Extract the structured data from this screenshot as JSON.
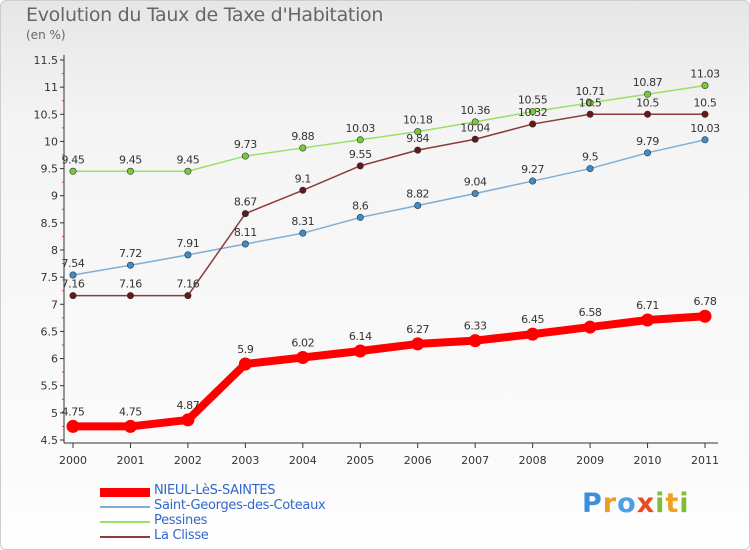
{
  "chart_data": {
    "type": "line",
    "title": "Evolution du Taux de Taxe d'Habitation",
    "subtitle": "(en %)",
    "xlabel": "",
    "ylabel": "",
    "categories": [
      "2000",
      "2001",
      "2002",
      "2003",
      "2004",
      "2005",
      "2006",
      "2007",
      "2008",
      "2009",
      "2010",
      "2011"
    ],
    "ylim": [
      4.5,
      11.5
    ],
    "yticks": [
      "4.5",
      "5",
      "5.5",
      "6",
      "6.5",
      "7",
      "7.5",
      "8",
      "8.5",
      "9",
      "9.5",
      "10",
      "10.5",
      "11",
      "11.5"
    ],
    "grid": false,
    "legend_position": "bottom-left",
    "series": [
      {
        "name": "NIEUL-LèS-SAINTES",
        "color": "#ff0000",
        "marker_color": "#ff0000",
        "emphasis": true,
        "values": [
          4.75,
          4.75,
          4.87,
          5.9,
          6.02,
          6.14,
          6.27,
          6.33,
          6.45,
          6.58,
          6.71,
          6.78
        ],
        "labels": [
          "4.75",
          "4.75",
          "4.87",
          "5.9",
          "6.02",
          "6.14",
          "6.27",
          "6.33",
          "6.45",
          "6.58",
          "6.71",
          "6.78"
        ]
      },
      {
        "name": "Saint-Georges-des-Coteaux",
        "color": "#7eaed6",
        "marker_color": "#3b8ec9",
        "emphasis": false,
        "values": [
          7.54,
          7.72,
          7.91,
          8.11,
          8.31,
          8.6,
          8.82,
          9.04,
          9.27,
          9.5,
          9.79,
          10.03
        ],
        "labels": [
          "7.54",
          "7.72",
          "7.91",
          "8.11",
          "8.31",
          "8.6",
          "8.82",
          "9.04",
          "9.27",
          "9.5",
          "9.79",
          "10.03"
        ]
      },
      {
        "name": "Pessines",
        "color": "#99e066",
        "marker_color": "#77cc33",
        "emphasis": false,
        "values": [
          9.45,
          9.45,
          9.45,
          9.73,
          9.88,
          10.03,
          10.18,
          10.36,
          10.55,
          10.71,
          10.87,
          11.03
        ],
        "labels": [
          "9.45",
          "9.45",
          "9.45",
          "9.73",
          "9.88",
          "10.03",
          "10.18",
          "10.36",
          "10.55",
          "10.71",
          "10.87",
          "11.03"
        ]
      },
      {
        "name": "La Clisse",
        "color": "#8c3a3a",
        "marker_color": "#661818",
        "emphasis": false,
        "values": [
          7.16,
          7.16,
          7.16,
          8.67,
          9.1,
          9.55,
          9.84,
          10.04,
          10.32,
          10.5,
          10.5,
          10.5
        ],
        "labels": [
          "7.16",
          "7.16",
          "7.16",
          "8.67",
          "9.1",
          "9.55",
          "9.84",
          "10.04",
          "10.32",
          "10.5",
          "10.5",
          "10.5"
        ]
      }
    ]
  },
  "legend": {
    "items": [
      {
        "label": "NIEUL-LèS-SAINTES",
        "color": "#ff0000",
        "text_color": "#3366cc"
      },
      {
        "label": "Saint-Georges-des-Coteaux",
        "color": "#7eaed6",
        "text_color": "#3366cc"
      },
      {
        "label": "Pessines",
        "color": "#99e066",
        "text_color": "#3366cc"
      },
      {
        "label": "La Clisse",
        "color": "#8c3a3a",
        "text_color": "#3366cc"
      }
    ]
  },
  "logo": {
    "letters": [
      {
        "ch": "P",
        "color": "#3a8fd8"
      },
      {
        "ch": "r",
        "color": "#e8a020"
      },
      {
        "ch": "o",
        "color": "#4aa0e0"
      },
      {
        "ch": "x",
        "color": "#e84c20"
      },
      {
        "ch": "i",
        "color": "#7bbf30"
      },
      {
        "ch": "t",
        "color": "#f0a020"
      },
      {
        "ch": "i",
        "color": "#7bbf30"
      }
    ]
  }
}
